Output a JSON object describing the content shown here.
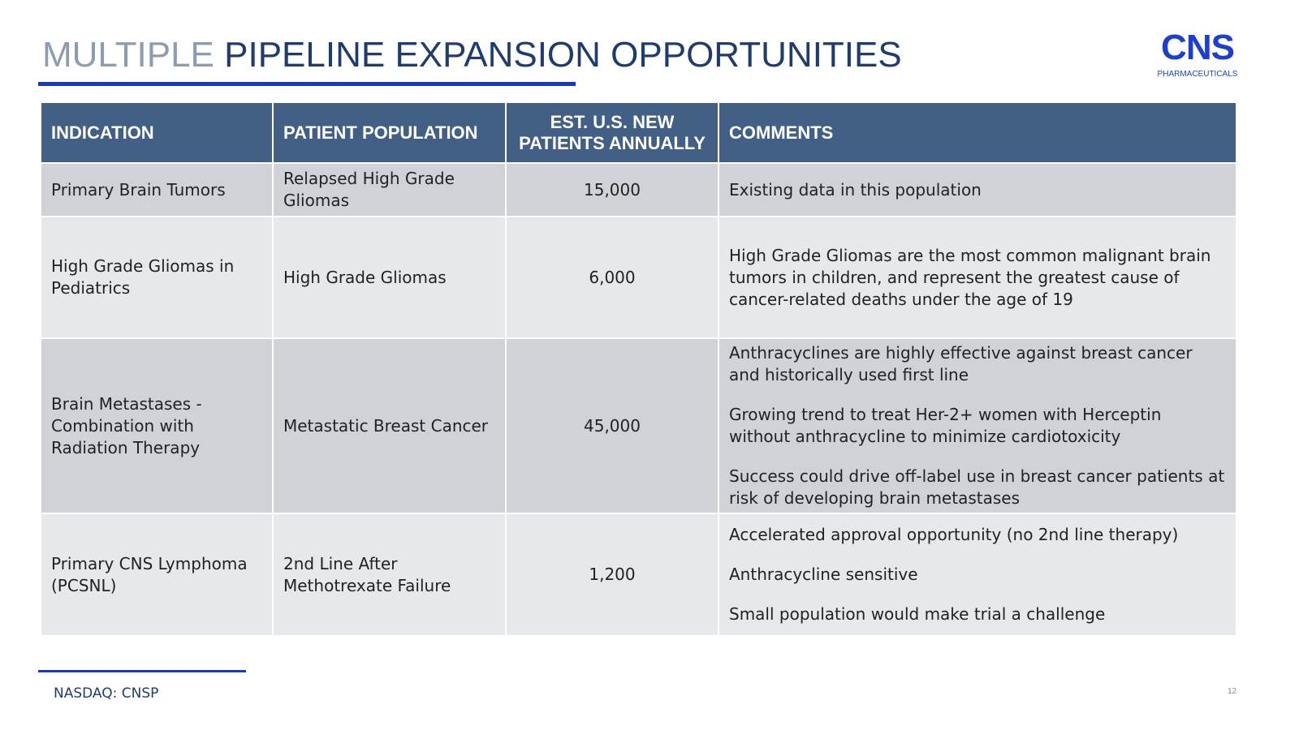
{
  "title": {
    "part1": "MULTIPLE",
    "part2": "PIPELINE EXPANSION OPPORTUNITIES"
  },
  "logo": {
    "main": "CNS",
    "sub": "PHARMACEUTICALS"
  },
  "table": {
    "headers": [
      "INDICATION",
      "PATIENT POPULATION",
      "EST. U.S. NEW PATIENTS ANNUALLY",
      "COMMENTS"
    ],
    "rows": [
      {
        "indication": "Primary Brain Tumors",
        "population": "Relapsed High Grade Gliomas",
        "patients": "15,000",
        "comments": [
          "Existing data in this population"
        ]
      },
      {
        "indication": "High Grade Gliomas in Pediatrics",
        "population": "High Grade Gliomas",
        "patients": "6,000",
        "comments": [
          "High Grade Gliomas are the most common malignant brain tumors in children, and represent the greatest cause of cancer-related deaths under the age of 19"
        ]
      },
      {
        "indication": "Brain Metastases - Combination with Radiation Therapy",
        "population": "Metastatic Breast Cancer",
        "patients": "45,000",
        "comments": [
          "Anthracyclines are highly effective against breast cancer and historically used first line",
          "Growing trend to treat Her-2+ women with Herceptin without anthracycline to minimize cardiotoxicity",
          "Success could drive off-label use in breast cancer patients at risk of developing brain metastases"
        ]
      },
      {
        "indication": "Primary CNS Lymphoma (PCSNL)",
        "population": "2nd Line After Methotrexate Failure",
        "patients": "1,200",
        "comments": [
          "Accelerated approval opportunity (no 2nd line therapy)",
          "Anthracycline sensitive",
          "Small population would make trial a challenge"
        ]
      }
    ]
  },
  "footer": {
    "ticker": "NASDAQ: CNSP",
    "page": "12"
  }
}
